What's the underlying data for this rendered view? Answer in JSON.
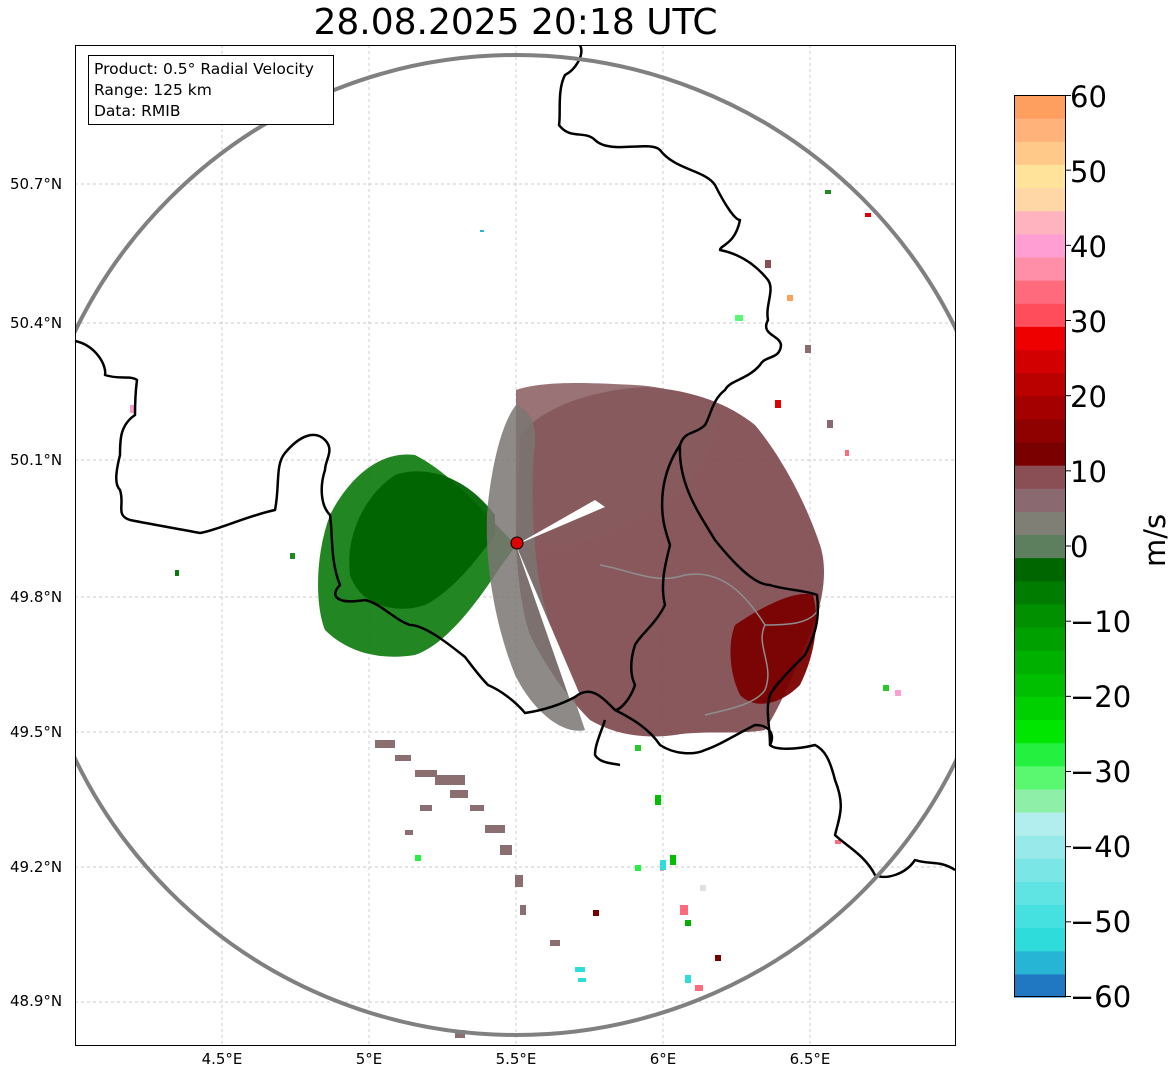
{
  "title": "28.08.2025 20:18 UTC",
  "info": {
    "product": "Product: 0.5° Radial Velocity",
    "range": "Range: 125 km",
    "data": "Data: RMIB"
  },
  "map": {
    "lat_ticks": [
      "50.7°N",
      "50.4°N",
      "50.1°N",
      "49.8°N",
      "49.5°N",
      "49.2°N",
      "48.9°N"
    ],
    "lon_ticks": [
      "4.5°E",
      "5°E",
      "5.5°E",
      "6°E",
      "6.5°E"
    ],
    "radar_site": {
      "lat": 49.91,
      "lon": 5.5
    },
    "colors": {
      "range_ring": "#808080",
      "border": "#000000",
      "grid": "#bbbbbb",
      "inbound": "#006400",
      "zero": "#857a78",
      "outbound": "#7a3a3a",
      "site_marker": "#e00000"
    }
  },
  "colorbar": {
    "unit": "m/s",
    "ticks": [
      "60",
      "50",
      "40",
      "30",
      "20",
      "10",
      "0",
      "−10",
      "−20",
      "−30",
      "−40",
      "−50",
      "−60"
    ],
    "range": [
      -60,
      60
    ],
    "colors": [
      "#1f78c1",
      "#27b5d6",
      "#2edcdc",
      "#45e0e0",
      "#60e3e3",
      "#7be6e6",
      "#98e9e9",
      "#b3eeee",
      "#8ef0a8",
      "#5af870",
      "#24f040",
      "#00e600",
      "#00d000",
      "#00bf00",
      "#00b000",
      "#00a000",
      "#009000",
      "#007d00",
      "#006600",
      "#5d7f5d",
      "#7f7f75",
      "#8a6a70",
      "#8a4f55",
      "#7a0000",
      "#8f0000",
      "#a50000",
      "#bb0000",
      "#d20000",
      "#ee0000",
      "#ff4d5c",
      "#ff6a7c",
      "#ff8fa8",
      "#ff9ed2",
      "#ffb3bf",
      "#ffd6a6",
      "#ffe39a",
      "#ffc98a",
      "#ffb37a",
      "#ff9f5f"
    ]
  }
}
